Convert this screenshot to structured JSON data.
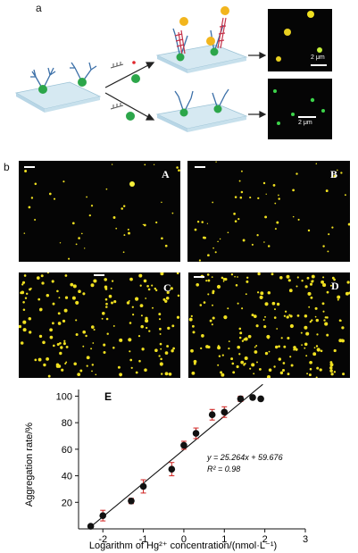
{
  "figure": {
    "panel_a_label": "a",
    "panel_b_label": "b",
    "scale_text_1": "2 μm",
    "scale_text_2": "2 μm",
    "sub_labels": [
      "A",
      "B",
      "C",
      "D"
    ],
    "colors": {
      "substrate": "#d6e9f2",
      "linker": "#3b6fa8",
      "green_particle": "#2ca64a",
      "gold_particle": "#f2b51d",
      "red_ion": "#e0262c",
      "micro_bg": "#050505",
      "dot_yellow": "#f0e020",
      "dot_green": "#3cd34a"
    }
  },
  "chart_data": {
    "type": "scatter",
    "panel_label": "E",
    "xlabel": "Logarithm of Hg²⁺ concentration/(nmol·L⁻¹)",
    "ylabel": "Aggregation rate/%",
    "xlim": [
      -2.6,
      3
    ],
    "ylim": [
      0,
      105
    ],
    "xticks": [
      -2,
      -1,
      0,
      1,
      2,
      3
    ],
    "yticks": [
      20,
      40,
      60,
      80,
      100
    ],
    "x": [
      -2.3,
      -2.0,
      -1.3,
      -1.0,
      -0.3,
      0.0,
      0.3,
      0.7,
      1.0,
      1.4,
      1.7,
      1.9
    ],
    "y": [
      2,
      10,
      21,
      32,
      45,
      63,
      72,
      86,
      88,
      98,
      99,
      98
    ],
    "err": [
      0,
      4,
      2,
      5,
      5,
      3,
      4,
      4,
      4,
      2,
      0,
      0
    ],
    "fit": {
      "x": [
        -2.3,
        1.95
      ],
      "y": [
        1.57,
        108.94
      ]
    },
    "equation": "y = 25.264x + 59.676",
    "r2": "R² = 0.98",
    "grid": false
  }
}
